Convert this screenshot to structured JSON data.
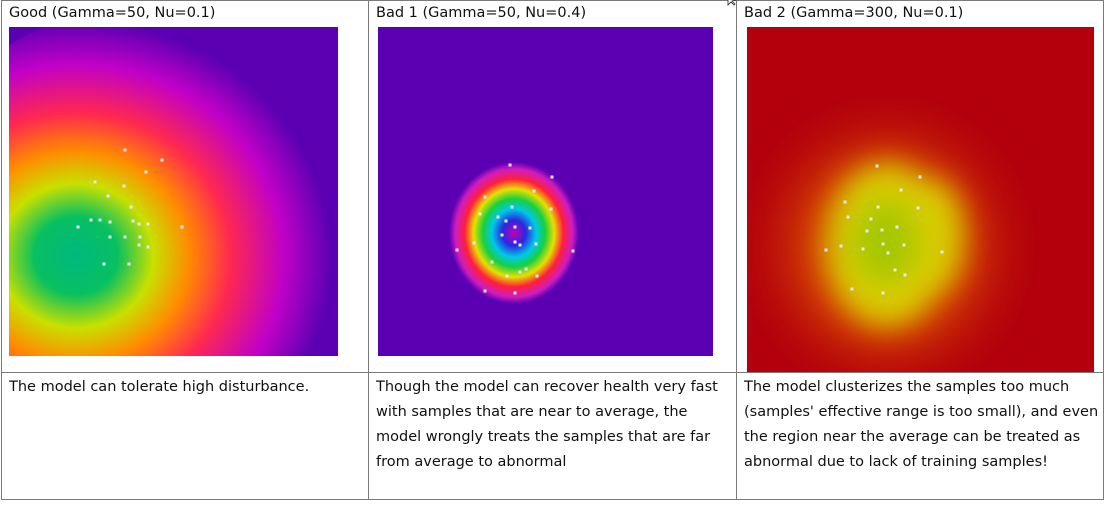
{
  "panels": [
    {
      "title": "Good (Gamma=50, Nu=0.1)",
      "caption": "The model can tolerate high disturbance.",
      "colors": {
        "background": "#5a00b2",
        "outer_ring": "#c000c8",
        "ring2": "#ff2850",
        "ring3": "#ff8c00",
        "ring4": "#c8e000",
        "core": "#08c060",
        "center": "#00b880"
      }
    },
    {
      "title": "Bad 1 (Gamma=50, Nu=0.4)",
      "caption": "Though the model can recover health very fast with samples that are near to average, the model wrongly treats the samples that are far from average to abnormal",
      "colors": {
        "background": "#5a00b2",
        "magenta": "#d01cc0",
        "red": "#ff1f3a",
        "yellow": "#e6e000",
        "green": "#18d040",
        "cyan": "#00c8e8",
        "blue": "#2a28e0",
        "center": "#c000b8"
      }
    },
    {
      "title": "Bad 2 (Gamma=300, Nu=0.1)",
      "caption": "The model clusterizes the samples too much (samples' effective range is too small), and even the region near the average can be treated as abnormal due to lack of training samples!",
      "colors": {
        "background": "#b3000c",
        "orange": "#d84a00",
        "yellow": "#d8cc00",
        "lime": "#a6c800"
      }
    }
  ],
  "sample_dot_color": "#e8e8f0"
}
